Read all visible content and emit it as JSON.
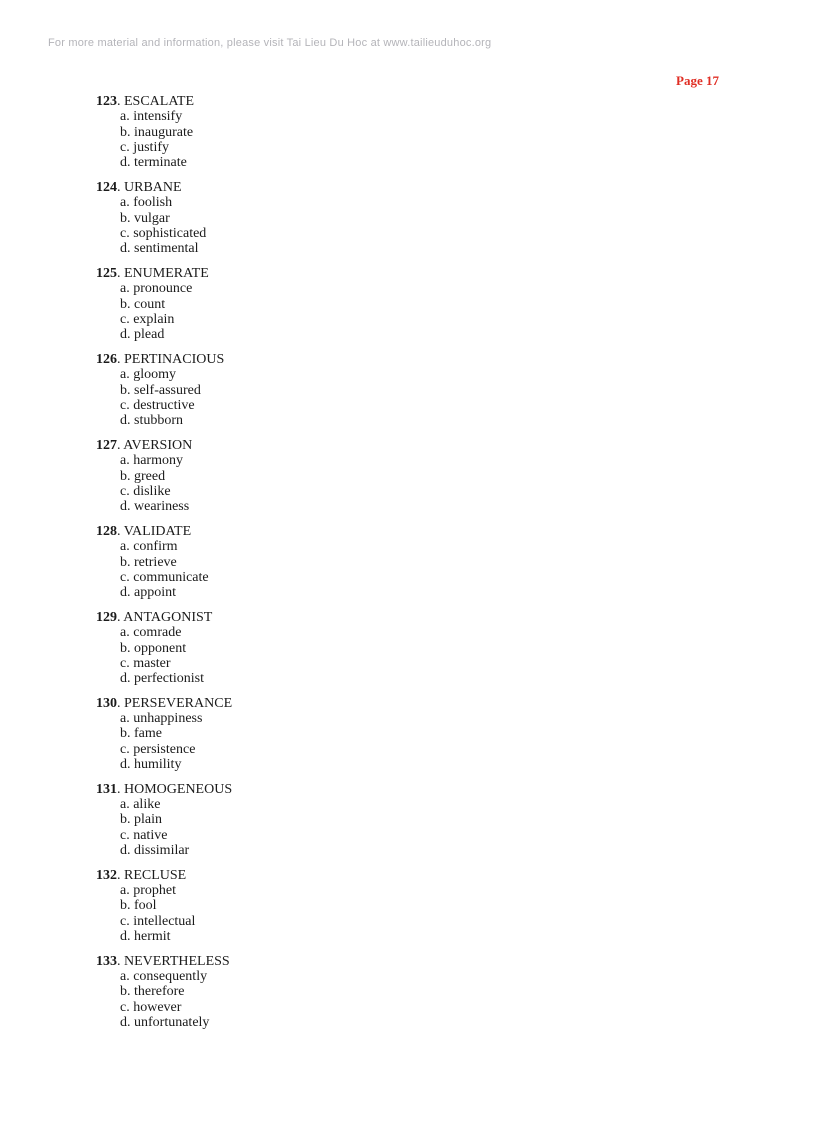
{
  "header": {
    "text": "For more material and information, please visit Tai Lieu Du Hoc at www.tailieuduhoc.org"
  },
  "page_label": "Page 17",
  "sep": ". ",
  "questions": [
    {
      "number": "123",
      "word": "ESCALATE",
      "options": [
        "a. intensify",
        "b. inaugurate",
        "c. justify",
        "d. terminate"
      ]
    },
    {
      "number": "124",
      "word": "URBANE",
      "options": [
        "a. foolish",
        "b. vulgar",
        "c. sophisticated",
        "d. sentimental"
      ]
    },
    {
      "number": "125",
      "word": "ENUMERATE",
      "options": [
        "a. pronounce",
        "b. count",
        "c. explain",
        "d. plead"
      ]
    },
    {
      "number": "126",
      "word": "PERTINACIOUS",
      "options": [
        "a. gloomy",
        "b. self-assured",
        "c. destructive",
        "d. stubborn"
      ]
    },
    {
      "number": "127",
      "word": "AVERSION",
      "options": [
        "a. harmony",
        "b. greed",
        "c. dislike",
        "d. weariness"
      ]
    },
    {
      "number": "128",
      "word": "VALIDATE",
      "options": [
        "a. confirm",
        "b. retrieve",
        "c. communicate",
        "d. appoint"
      ]
    },
    {
      "number": "129",
      "word": "ANTAGONIST",
      "options": [
        "a. comrade",
        "b. opponent",
        "c. master",
        "d. perfectionist"
      ]
    },
    {
      "number": "130",
      "word": "PERSEVERANCE",
      "options": [
        "a. unhappiness",
        "b. fame",
        "c. persistence",
        "d. humility"
      ]
    },
    {
      "number": "131",
      "word": "HOMOGENEOUS",
      "options": [
        "a. alike",
        "b. plain",
        "c. native",
        "d. dissimilar"
      ]
    },
    {
      "number": "132",
      "word": "RECLUSE",
      "options": [
        "a. prophet",
        "b. fool",
        "c. intellectual",
        "d. hermit"
      ]
    },
    {
      "number": "133",
      "word": "NEVERTHELESS",
      "options": [
        "a. consequently",
        "b. therefore",
        "c. however",
        "d. unfortunately"
      ]
    }
  ]
}
